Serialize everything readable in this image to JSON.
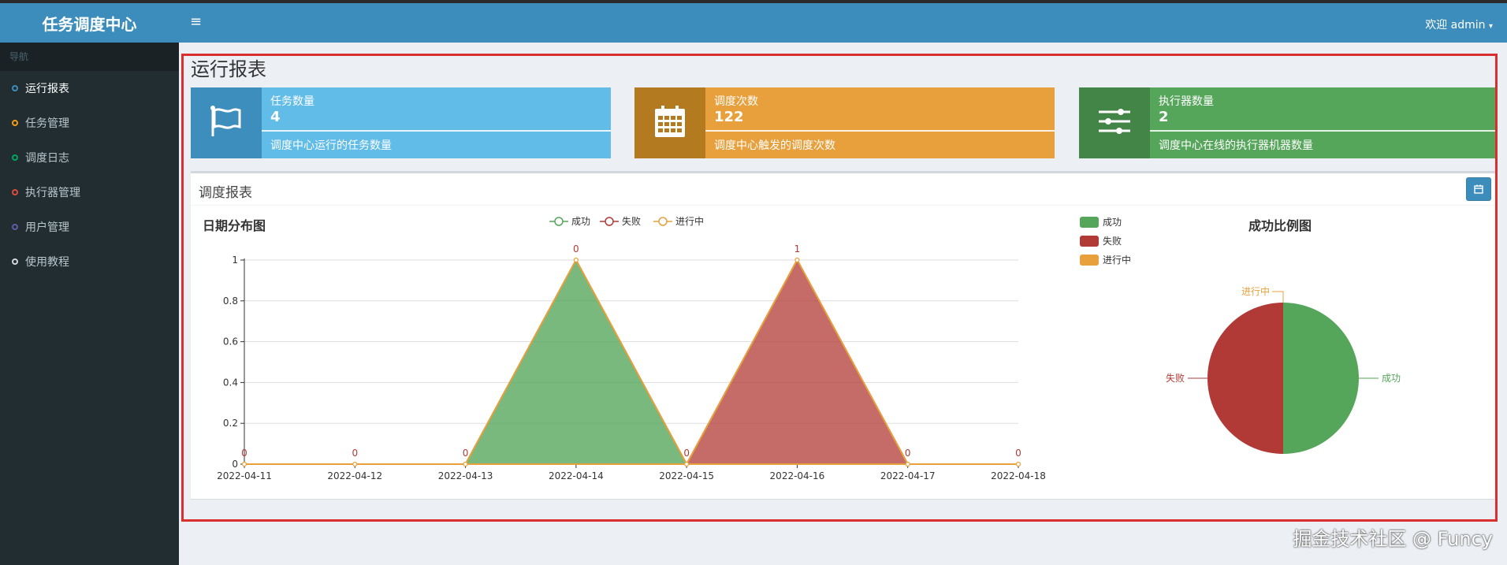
{
  "app": {
    "title": "任务调度中心"
  },
  "header": {
    "menu_icon": "hamburger-icon",
    "user_label": "欢迎 admin"
  },
  "sidebar": {
    "header": "导航",
    "items": [
      {
        "label": "运行报表",
        "color": "#3c8dbc",
        "active": true
      },
      {
        "label": "任务管理",
        "color": "#f39c12",
        "active": false
      },
      {
        "label": "调度日志",
        "color": "#00a65a",
        "active": false
      },
      {
        "label": "执行器管理",
        "color": "#dd4b39",
        "active": false
      },
      {
        "label": "用户管理",
        "color": "#605ca8",
        "active": false
      },
      {
        "label": "使用教程",
        "color": "#d2d6de",
        "active": false
      }
    ]
  },
  "page": {
    "title": "运行报表"
  },
  "info_boxes": [
    {
      "label": "任务数量",
      "value": "4",
      "desc": "调度中心运行的任务数量",
      "icon": "flag-icon",
      "icon_bg": "#3d8ebc",
      "bg": "#62bce8"
    },
    {
      "label": "调度次数",
      "value": "122",
      "desc": "调度中心触发的调度次数",
      "icon": "calendar-icon",
      "icon_bg": "#b47a20",
      "bg": "#e8a03c"
    },
    {
      "label": "执行器数量",
      "value": "2",
      "desc": "调度中心在线的执行器机器数量",
      "icon": "sliders-icon",
      "icon_bg": "#438447",
      "bg": "#55a55a"
    }
  ],
  "report": {
    "title": "调度报表",
    "calendar_icon": "calendar-icon"
  },
  "chart_data": [
    {
      "type": "area",
      "title": "日期分布图",
      "x": [
        "2022-04-11",
        "2022-04-12",
        "2022-04-13",
        "2022-04-14",
        "2022-04-15",
        "2022-04-16",
        "2022-04-17",
        "2022-04-18"
      ],
      "series": [
        {
          "name": "成功",
          "values": [
            0,
            0,
            0,
            1,
            0,
            0,
            0,
            0
          ],
          "color": "#55a55a"
        },
        {
          "name": "失败",
          "values": [
            0,
            0,
            0,
            0,
            0,
            1,
            0,
            0
          ],
          "color": "#b13a36"
        },
        {
          "name": "进行中",
          "values": [
            0,
            0,
            0,
            0,
            0,
            0,
            0,
            0
          ],
          "color": "#e8a03c"
        }
      ],
      "data_labels": [
        "0",
        "0",
        "0",
        "0",
        "0",
        "1",
        "0",
        "0"
      ],
      "y_ticks": [
        "0",
        "0.2",
        "0.4",
        "0.6",
        "0.8",
        "1"
      ],
      "ylim": [
        0,
        1
      ],
      "grid": true,
      "legend": "top-center"
    },
    {
      "type": "pie",
      "title": "成功比例图",
      "series": [
        {
          "name": "成功",
          "value": 1,
          "color": "#55a55a"
        },
        {
          "name": "失败",
          "value": 1,
          "color": "#b13a36"
        },
        {
          "name": "进行中",
          "value": 0,
          "color": "#e8a03c"
        }
      ],
      "legend": "top-left"
    }
  ],
  "watermark": "掘金技术社区 @ Funcy"
}
